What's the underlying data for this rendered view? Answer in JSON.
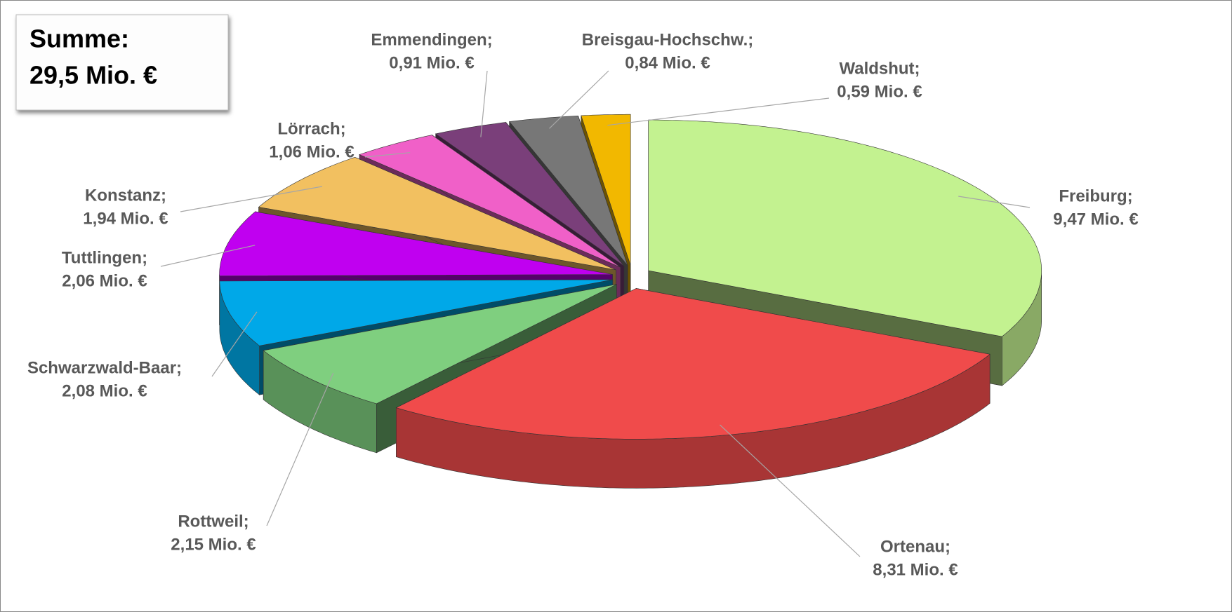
{
  "chart_data": {
    "type": "pie3d",
    "annotations": [
      "Summe:",
      "29,5 Mio. €"
    ],
    "categories": [
      "Freiburg;",
      "Ortenau;",
      "Rottweil;",
      "Schwarzwald-Baar;",
      "Tuttlingen;",
      "Konstanz;",
      "Lörrach;",
      "Emmendingen;",
      "Breisgau-Hochschw.;",
      "Waldshut;"
    ],
    "values": [
      9.47,
      8.31,
      2.15,
      2.08,
      2.06,
      1.94,
      1.06,
      0.91,
      0.84,
      0.59
    ],
    "value_labels": [
      "9,47 Mio. €",
      "8,31 Mio. €",
      "2,15 Mio. €",
      "2,08 Mio. €",
      "2,06 Mio. €",
      "1,94 Mio. €",
      "1,06 Mio. €",
      "0,91 Mio. €",
      "0,84 Mio. €",
      "0,59 Mio. €"
    ],
    "colors": [
      "#c3f290",
      "#f04b4b",
      "#7fcf7f",
      "#00a8e8",
      "#c000f0",
      "#f2c060",
      "#f060c8",
      "#7a3f7a",
      "#777777",
      "#f2b800"
    ]
  }
}
